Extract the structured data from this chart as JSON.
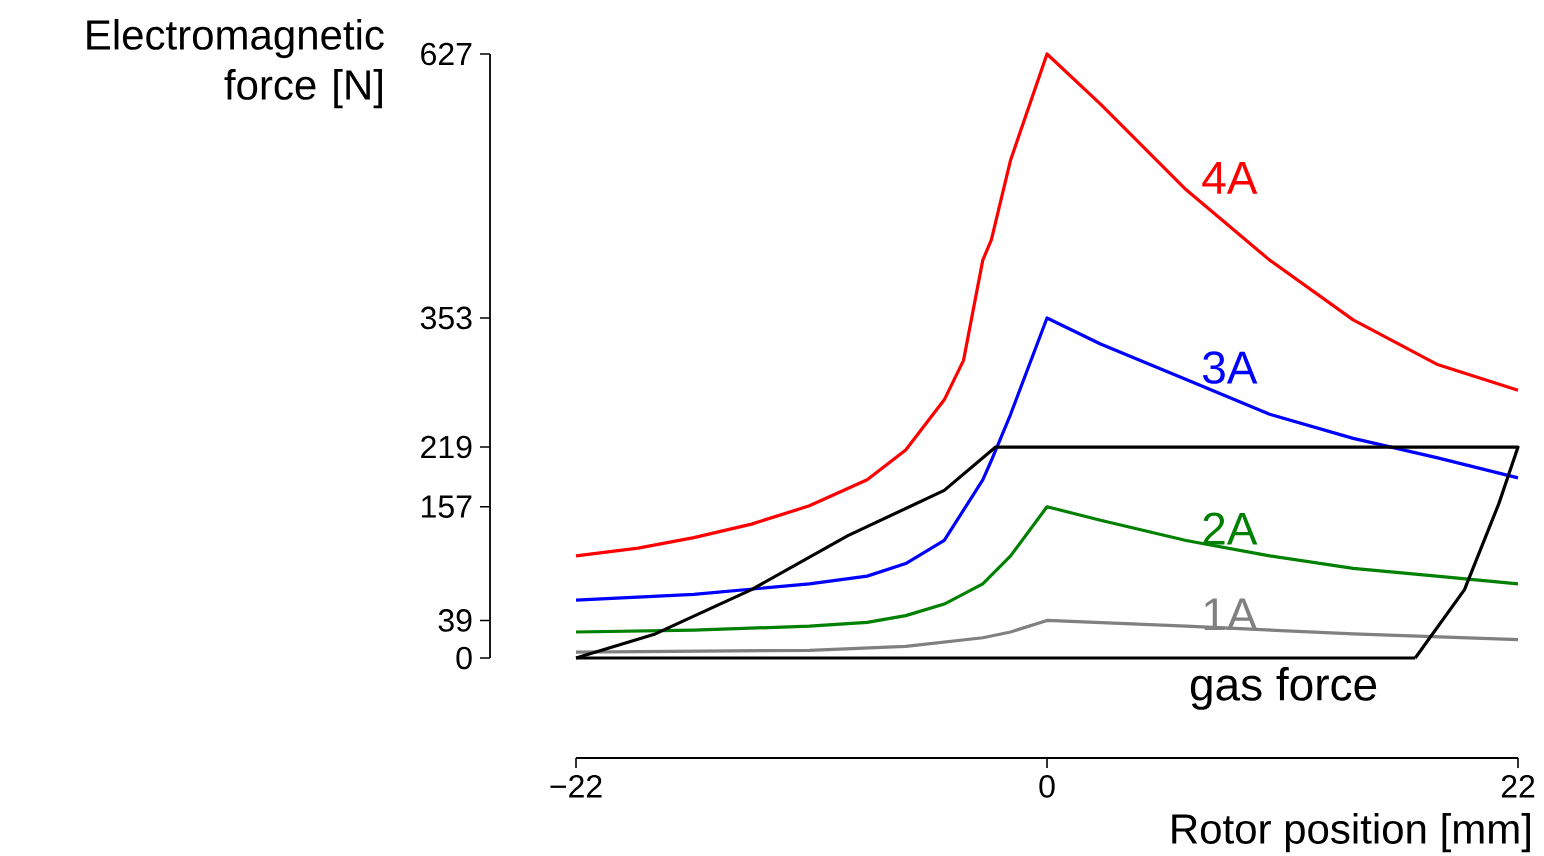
{
  "chart_data": {
    "type": "line",
    "xlabel": "Rotor position [mm]",
    "ylabel": "Electromagnetic force [N]",
    "xlim": [
      -22,
      22
    ],
    "ylim": [
      0,
      627
    ],
    "xticks": [
      {
        "value": -22,
        "label": "−22"
      },
      0,
      22
    ],
    "yticks": [
      0,
      39,
      157,
      219,
      353,
      627
    ],
    "series": [
      {
        "name": "4A",
        "color": "#ff0000",
        "x": [
          -22,
          -19.1,
          -16.5,
          -13.8,
          -11.1,
          -8.4,
          -6.6,
          -4.8,
          -3.9,
          -3.0,
          -2.6,
          -1.7,
          0,
          2.5,
          6.5,
          10.4,
          14.3,
          18.2,
          22
        ],
        "values": [
          106,
          114,
          125,
          139,
          158,
          185,
          216,
          268,
          309,
          413,
          434,
          517,
          627,
          575,
          486,
          413,
          351,
          305,
          278
        ]
      },
      {
        "name": "3A",
        "color": "#0000ff",
        "x": [
          -22,
          -16.5,
          -11.1,
          -8.4,
          -6.6,
          -4.8,
          -3.0,
          -2.6,
          -1.7,
          0,
          2.5,
          6.5,
          10.4,
          14.3,
          18.2,
          22
        ],
        "values": [
          60,
          66,
          77,
          85,
          98,
          122,
          185,
          205,
          253,
          353,
          326,
          289,
          253,
          228,
          208,
          187
        ]
      },
      {
        "name": "2A",
        "color": "#008000",
        "x": [
          -22,
          -16.5,
          -11.1,
          -8.4,
          -6.6,
          -4.8,
          -3.0,
          -1.7,
          0,
          2.5,
          6.5,
          10.4,
          14.3,
          18.2,
          22
        ],
        "values": [
          27,
          29,
          33,
          37,
          44,
          56,
          77,
          106,
          157,
          143,
          122,
          106,
          93,
          85,
          77
        ]
      },
      {
        "name": "1A",
        "color": "#808080",
        "x": [
          -22,
          -11.1,
          -6.6,
          -3.0,
          -1.7,
          0,
          6.5,
          14.3,
          22
        ],
        "values": [
          6,
          8,
          12,
          21,
          27,
          39,
          33,
          25,
          19
        ]
      },
      {
        "name": "gas force",
        "color": "#000000",
        "x": [
          -22,
          -18.3,
          -13.8,
          -9.3,
          -4.8,
          -2.4,
          22,
          21.1,
          19.5,
          17.2
        ],
        "values": [
          0,
          25,
          71,
          127,
          174,
          219,
          219,
          160,
          71,
          0
        ]
      },
      {
        "color": "#000000",
        "x": [
          -22,
          17.2
        ],
        "values": [
          0,
          0
        ]
      }
    ]
  }
}
